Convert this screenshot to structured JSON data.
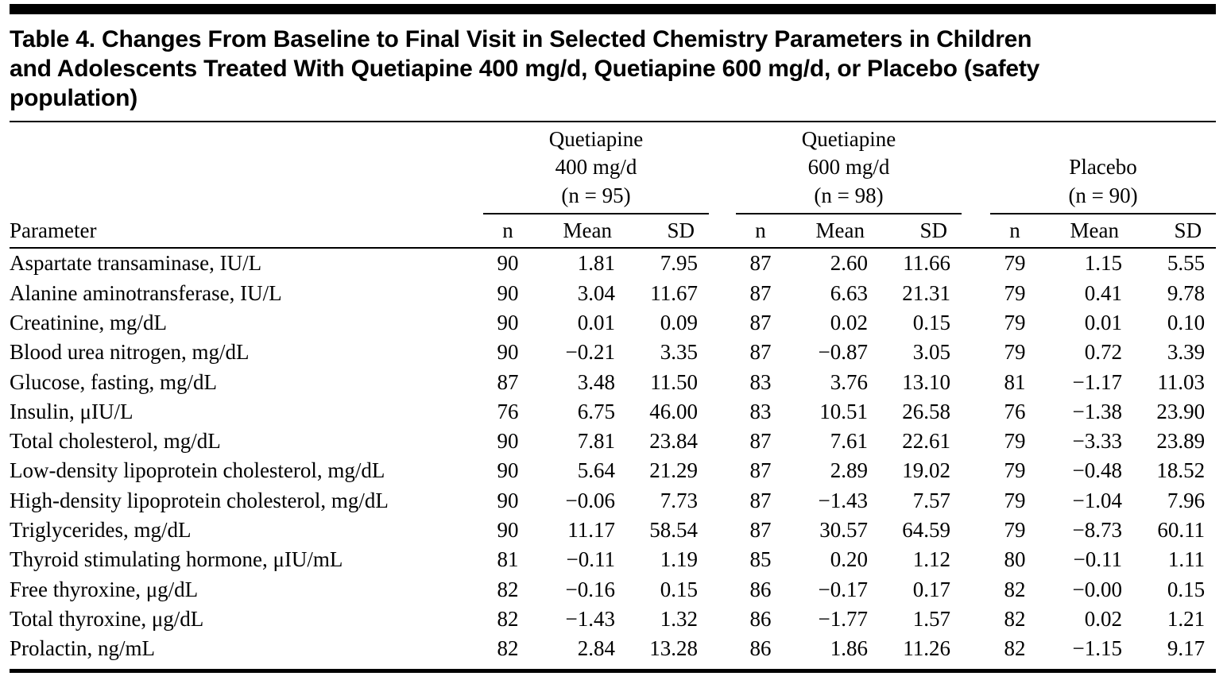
{
  "table": {
    "title_lines": [
      "Table 4. Changes From Baseline to Final Visit in Selected Chemistry Parameters in Children",
      "and Adolescents Treated With Quetiapine 400 mg/d, Quetiapine 600 mg/d, or Placebo (safety",
      "population)"
    ],
    "parameter_header": "Parameter",
    "groups": [
      {
        "lines": [
          "Quetiapine",
          "400 mg/d",
          "(n = 95)"
        ]
      },
      {
        "lines": [
          "Quetiapine",
          "600 mg/d",
          "(n = 98)"
        ]
      },
      {
        "lines": [
          "Placebo",
          "(n = 90)"
        ]
      }
    ],
    "sub_headers": [
      "n",
      "Mean",
      "SD"
    ],
    "rows": [
      {
        "parameter": "Aspartate transaminase, IU/L",
        "values": [
          "90",
          "1.81",
          "7.95",
          "87",
          "2.60",
          "11.66",
          "79",
          "1.15",
          "5.55"
        ]
      },
      {
        "parameter": "Alanine aminotransferase, IU/L",
        "values": [
          "90",
          "3.04",
          "11.67",
          "87",
          "6.63",
          "21.31",
          "79",
          "0.41",
          "9.78"
        ]
      },
      {
        "parameter": "Creatinine, mg/dL",
        "values": [
          "90",
          "0.01",
          "0.09",
          "87",
          "0.02",
          "0.15",
          "79",
          "0.01",
          "0.10"
        ]
      },
      {
        "parameter": "Blood urea nitrogen, mg/dL",
        "values": [
          "90",
          "−0.21",
          "3.35",
          "87",
          "−0.87",
          "3.05",
          "79",
          "0.72",
          "3.39"
        ]
      },
      {
        "parameter": "Glucose, fasting, mg/dL",
        "values": [
          "87",
          "3.48",
          "11.50",
          "83",
          "3.76",
          "13.10",
          "81",
          "−1.17",
          "11.03"
        ]
      },
      {
        "parameter": "Insulin, μIU/L",
        "values": [
          "76",
          "6.75",
          "46.00",
          "83",
          "10.51",
          "26.58",
          "76",
          "−1.38",
          "23.90"
        ]
      },
      {
        "parameter": "Total cholesterol, mg/dL",
        "values": [
          "90",
          "7.81",
          "23.84",
          "87",
          "7.61",
          "22.61",
          "79",
          "−3.33",
          "23.89"
        ]
      },
      {
        "parameter": "Low-density lipoprotein cholesterol, mg/dL",
        "values": [
          "90",
          "5.64",
          "21.29",
          "87",
          "2.89",
          "19.02",
          "79",
          "−0.48",
          "18.52"
        ]
      },
      {
        "parameter": "High-density lipoprotein cholesterol, mg/dL",
        "values": [
          "90",
          "−0.06",
          "7.73",
          "87",
          "−1.43",
          "7.57",
          "79",
          "−1.04",
          "7.96"
        ]
      },
      {
        "parameter": "Triglycerides, mg/dL",
        "values": [
          "90",
          "11.17",
          "58.54",
          "87",
          "30.57",
          "64.59",
          "79",
          "−8.73",
          "60.11"
        ]
      },
      {
        "parameter": "Thyroid stimulating hormone, μIU/mL",
        "values": [
          "81",
          "−0.11",
          "1.19",
          "85",
          "0.20",
          "1.12",
          "80",
          "−0.11",
          "1.11"
        ]
      },
      {
        "parameter": "Free thyroxine, μg/dL",
        "values": [
          "82",
          "−0.16",
          "0.15",
          "86",
          "−0.17",
          "0.17",
          "82",
          "−0.00",
          "0.15"
        ]
      },
      {
        "parameter": "Total thyroxine, μg/dL",
        "values": [
          "82",
          "−1.43",
          "1.32",
          "86",
          "−1.77",
          "1.57",
          "82",
          "0.02",
          "1.21"
        ]
      },
      {
        "parameter": "Prolactin, ng/mL",
        "values": [
          "82",
          "2.84",
          "13.28",
          "86",
          "1.86",
          "11.26",
          "82",
          "−1.15",
          "9.17"
        ]
      }
    ],
    "colors": {
      "rule": "#000000",
      "background": "#ffffff",
      "text": "#000000"
    }
  }
}
